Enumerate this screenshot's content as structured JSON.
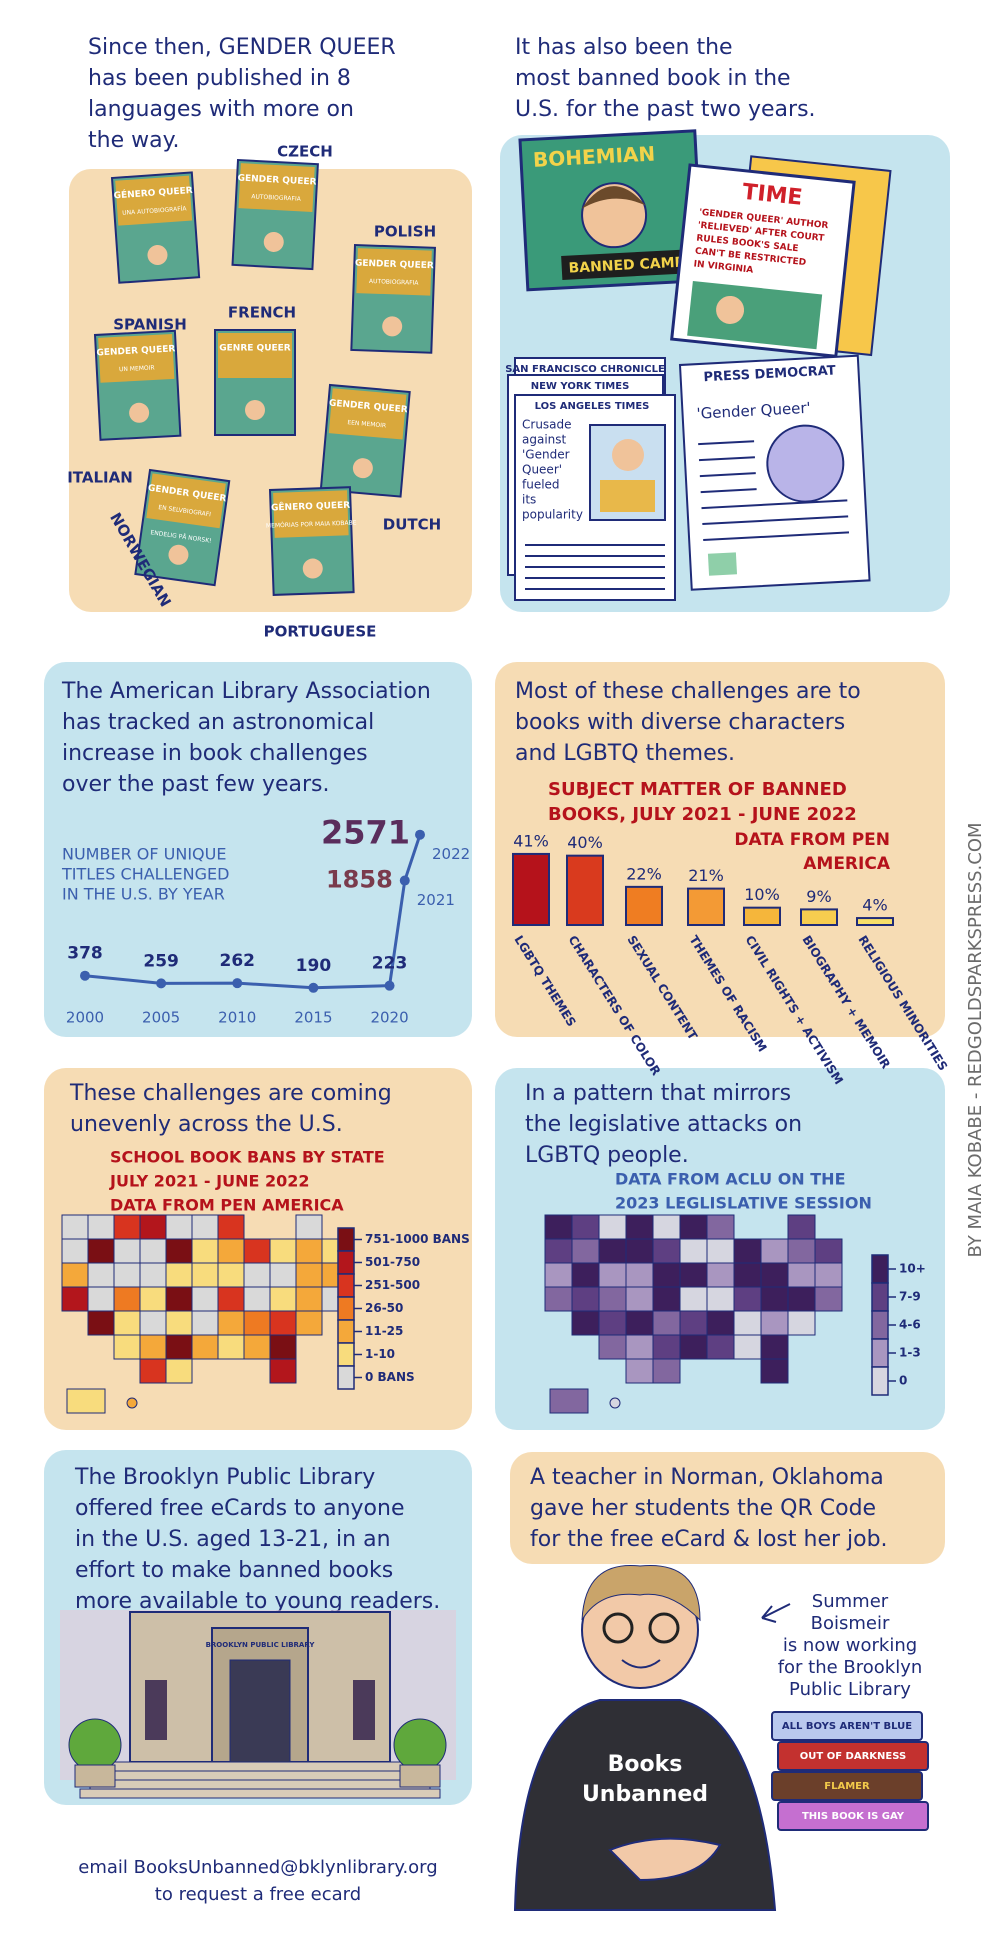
{
  "credit": "BY MAIA KOBABE - REDGOLDSPARKSPRESS.COM",
  "panels": [
    {
      "text": [
        "Since then, GENDER QUEER",
        "has been published in 8",
        "languages with more on",
        "the way."
      ],
      "covers": [
        {
          "language": "SPANISH",
          "title": "GÉNERO QUEER",
          "subtitle": "UNA AUTOBIOGRAFÍA"
        },
        {
          "language": "CZECH",
          "title": "GENDER QUEER",
          "subtitle": "AUTOBIOGRAFIA"
        },
        {
          "language": "POLISH",
          "title": "GENDER QUEER",
          "subtitle": "AUTOBIOGRAFIA"
        },
        {
          "language": "FRENCH",
          "title": "GENRE QUEER"
        },
        {
          "language": "ITALIAN",
          "title": "GENDER QUEER",
          "subtitle": "UN MEMOIR"
        },
        {
          "language": "NORWEGIAN",
          "title": "GENDER QUEER",
          "subtitle": "EN SELVBIOGRAFI",
          "sticker": "ENDELIG PÅ NORSK!"
        },
        {
          "language": "DUTCH",
          "title": "GENDER QUEER",
          "subtitle": "EEN MEMOIR"
        },
        {
          "language": "PORTUGUESE",
          "title": "GÊNERO QUEER",
          "subtitle": "MEMÓRIAS POR MAIA KOBABE"
        }
      ]
    },
    {
      "text": [
        "It has also been the",
        "most banned book in the",
        "U.S. for the past two years."
      ],
      "bohemian": {
        "title": "BOHEMIAN",
        "caption": "BANNED CAMP"
      },
      "time": {
        "title": "TIME",
        "headline": [
          "'GENDER QUEER' AUTHOR",
          "'RELIEVED' AFTER COURT",
          "RULES BOOK'S SALE",
          "CAN'T BE RESTRICTED",
          "IN VIRGINIA"
        ]
      },
      "newspapers": [
        "SAN FRANCISCO CHRONICLE",
        "NEW YORK TIMES",
        "LOS ANGELES TIMES"
      ],
      "la_headline": [
        "Crusade",
        "against",
        "'Gender",
        "Queer'",
        "fueled",
        "its",
        "popularity"
      ],
      "press_democrat": {
        "title": "PRESS DEMOCRAT",
        "headline": "'Gender Queer'"
      }
    },
    {
      "text": [
        "The American Library Association",
        "has tracked an astronomical",
        "increase in book challenges",
        "over the past few years."
      ],
      "chart": {
        "type": "line",
        "title": [
          "NUMBER OF UNIQUE",
          "TITLES CHALLENGED",
          "IN THE U.S. BY YEAR"
        ],
        "x": [
          2000,
          2005,
          2010,
          2015,
          2020,
          2021,
          2022
        ],
        "values": [
          378,
          259,
          262,
          190,
          223,
          1858,
          2571
        ],
        "xlim": [
          2000,
          2022
        ],
        "ylim": [
          0,
          2800
        ],
        "xticks": [
          2000,
          2005,
          2010,
          2015,
          2020,
          2021,
          2022
        ],
        "color": "#3b5fae"
      }
    },
    {
      "text": [
        "Most of these challenges are to",
        "books with diverse characters",
        "and LGBTQ themes."
      ],
      "chart": {
        "type": "bar",
        "title": [
          "SUBJECT MATTER OF BANNED",
          "BOOKS, JULY 2021 - JUNE 2022"
        ],
        "source": [
          "DATA FROM PEN",
          "AMERICA"
        ],
        "categories": [
          "LGBTQ THEMES",
          "CHARACTERS OF COLOR",
          "SEXUAL CONTENT",
          "THEMES OF RACISM",
          "CIVIL RIGHTS + ACTIVISM",
          "BIOGRAPHY + MEMOIR",
          "RELIGIOUS MINORITIES"
        ],
        "values": [
          41,
          40,
          22,
          21,
          10,
          9,
          4
        ],
        "value_labels": [
          "41%",
          "40%",
          "22%",
          "21%",
          "10%",
          "9%",
          "4%"
        ],
        "colors": [
          "#b5121b",
          "#d93a1e",
          "#ef7d22",
          "#f39a35",
          "#f5b63b",
          "#f7cd4f",
          "#f7df6a"
        ],
        "ylim": [
          0,
          45
        ]
      }
    },
    {
      "text": [
        "These challenges are coming",
        "unevenly across the U.S."
      ],
      "map": {
        "title": [
          "SCHOOL BOOK BANS BY STATE",
          "JULY 2021 - JUNE 2022",
          "DATA FROM PEN AMERICA"
        ],
        "legend": [
          "751-1000 BANS",
          "501-750",
          "251-500",
          "26-50",
          "11-25",
          "1-10",
          "0 BANS"
        ],
        "colors": [
          "#7a0f14",
          "#b3161c",
          "#d8341f",
          "#ee7a22",
          "#f4a83a",
          "#f8dc7d",
          "#d9d9d9"
        ]
      }
    },
    {
      "text": [
        "In a pattern that mirrors",
        "the legislative attacks on",
        "LGBTQ people."
      ],
      "map": {
        "title": [
          "DATA FROM ACLU ON THE",
          "2023 LEGLISLATIVE SESSION"
        ],
        "legend": [
          "10+",
          "7-9",
          "4-6",
          "1-3",
          "0"
        ],
        "colors": [
          "#3d1f5c",
          "#5e3f82",
          "#82679f",
          "#a996c0",
          "#d6d6e0"
        ]
      }
    },
    {
      "text": [
        "The Brooklyn Public Library",
        "offered free eCards to anyone",
        "in the U.S. aged 13-21, in an",
        "effort to make banned books",
        "more available to young readers."
      ],
      "sign": "BROOKLYN PUBLIC LIBRARY",
      "email": [
        "email BooksUnbanned@bklynlibrary.org",
        "to request a free ecard"
      ]
    },
    {
      "text": [
        "A teacher in Norman, Oklahoma",
        "gave her students the QR Code",
        "for the free eCard & lost her job."
      ],
      "note": [
        "Summer",
        "Boismeir",
        "is now working",
        "for the Brooklyn",
        "Public Library"
      ],
      "shirt": [
        "Books",
        "Unbanned"
      ],
      "books": [
        "ALL BOYS AREN'T BLUE",
        "OUT OF DARKNESS",
        "FLAMER",
        "THIS BOOK IS GAY"
      ]
    }
  ]
}
